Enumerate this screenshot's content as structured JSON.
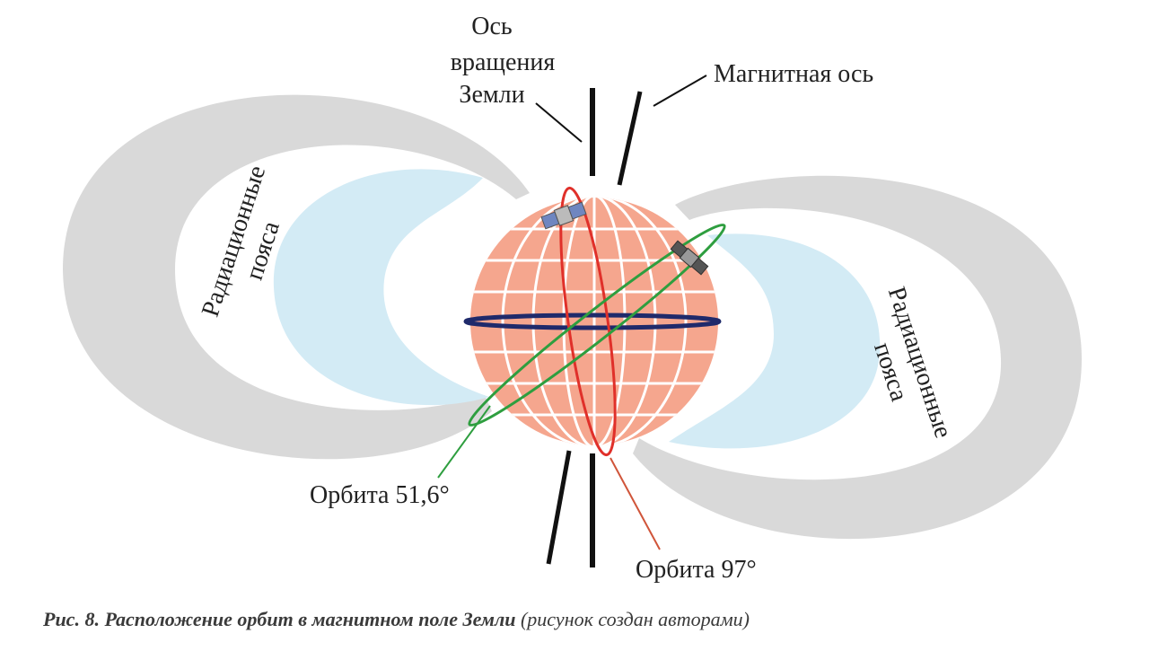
{
  "labels": {
    "rotation_axis": [
      "Ось",
      "вращения",
      "Земли"
    ],
    "magnetic_axis": "Магнитная ось",
    "belts_left": [
      "Радиационные",
      "пояса"
    ],
    "belts_right": [
      "Радиационные",
      "пояса"
    ],
    "orbit_iss": "Орбита 51,6°",
    "orbit_polar": "Орбита 97°"
  },
  "caption": {
    "title": "Рис. 8. Расположение орбит в магнитном поле Земли",
    "note": "(рисунок создан авторами)"
  }
}
